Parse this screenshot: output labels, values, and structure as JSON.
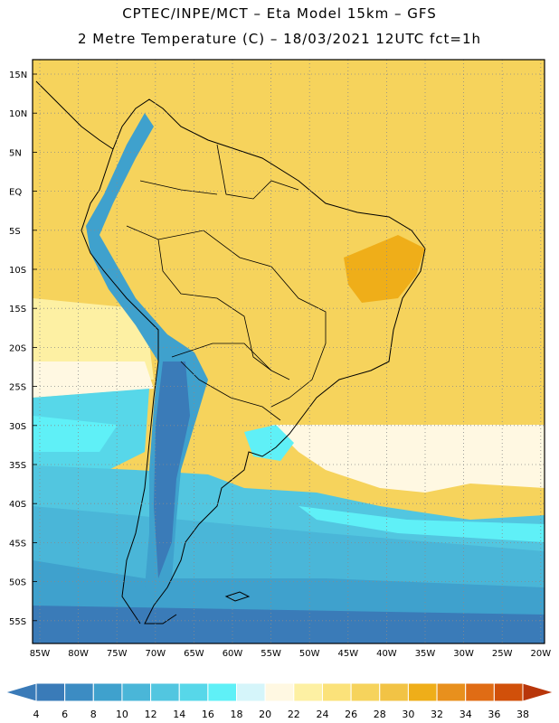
{
  "header": {
    "line1": "CPTEC/INPE/MCT –  Eta Model 15km – GFS",
    "line2": "2 Metre Temperature (C) – 18/03/2021 12UTC fct=1h"
  },
  "map": {
    "lat_labels": [
      "15N",
      "10N",
      "5N",
      "EQ",
      "5S",
      "10S",
      "15S",
      "20S",
      "25S",
      "30S",
      "35S",
      "40S",
      "45S",
      "50S",
      "55S"
    ],
    "lon_labels": [
      "85W",
      "80W",
      "75W",
      "70W",
      "65W",
      "60W",
      "55W",
      "50W",
      "45W",
      "40W",
      "35W",
      "30W",
      "25W",
      "20W"
    ],
    "grid": true
  },
  "colorbar": {
    "ticks": [
      "4",
      "6",
      "8",
      "10",
      "12",
      "14",
      "16",
      "18",
      "20",
      "22",
      "24",
      "26",
      "28",
      "30",
      "32",
      "34",
      "36",
      "38"
    ],
    "colors": [
      "#3a7bb8",
      "#3c8cc3",
      "#3fa1cd",
      "#4ab6d8",
      "#52c6e0",
      "#57d7e9",
      "#5ff0f7",
      "#d5f5fa",
      "#fff8e2",
      "#fdf0a3",
      "#fbe27a",
      "#f6d35c",
      "#f2c345",
      "#efae19",
      "#e8901d",
      "#e06c15",
      "#d1500a",
      "#b8360a"
    ]
  }
}
